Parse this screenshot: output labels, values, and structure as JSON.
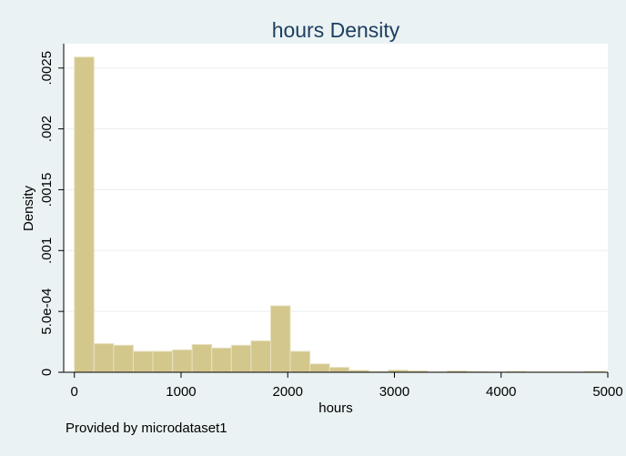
{
  "chart_data": {
    "type": "bar",
    "title": "hours Density",
    "xlabel": "hours",
    "ylabel": "Density",
    "note": "Provided by microdataset1",
    "xlim": [
      -100,
      5000
    ],
    "ylim": [
      0,
      0.0027
    ],
    "xticks": [
      {
        "value": 0,
        "label": "0"
      },
      {
        "value": 1000,
        "label": "1000"
      },
      {
        "value": 2000,
        "label": "2000"
      },
      {
        "value": 3000,
        "label": "3000"
      },
      {
        "value": 4000,
        "label": "4000"
      },
      {
        "value": 5000,
        "label": "5000"
      }
    ],
    "yticks": [
      {
        "value": 0,
        "label": "0"
      },
      {
        "value": 0.0005,
        "label": "5.0e-04"
      },
      {
        "value": 0.001,
        "label": ".001"
      },
      {
        "value": 0.0015,
        "label": ".0015"
      },
      {
        "value": 0.002,
        "label": ".002"
      },
      {
        "value": 0.0025,
        "label": ".0025"
      }
    ],
    "grid": true,
    "bin_width": 184,
    "bins": [
      {
        "x0": 0,
        "x1": 184,
        "value": 0.00259
      },
      {
        "x0": 184,
        "x1": 368,
        "value": 0.000235
      },
      {
        "x0": 368,
        "x1": 552,
        "value": 0.000222
      },
      {
        "x0": 552,
        "x1": 736,
        "value": 0.000172
      },
      {
        "x0": 736,
        "x1": 920,
        "value": 0.000172
      },
      {
        "x0": 920,
        "x1": 1104,
        "value": 0.000184
      },
      {
        "x0": 1104,
        "x1": 1288,
        "value": 0.000228
      },
      {
        "x0": 1288,
        "x1": 1472,
        "value": 0.000199
      },
      {
        "x0": 1472,
        "x1": 1656,
        "value": 0.000222
      },
      {
        "x0": 1656,
        "x1": 1840,
        "value": 0.000258
      },
      {
        "x0": 1840,
        "x1": 2024,
        "value": 0.000546
      },
      {
        "x0": 2024,
        "x1": 2208,
        "value": 0.000172
      },
      {
        "x0": 2208,
        "x1": 2392,
        "value": 6.9e-05
      },
      {
        "x0": 2392,
        "x1": 2576,
        "value": 4e-05
      },
      {
        "x0": 2576,
        "x1": 2760,
        "value": 1.6e-05
      },
      {
        "x0": 2760,
        "x1": 2944,
        "value": 6e-06
      },
      {
        "x0": 2944,
        "x1": 3128,
        "value": 1.8e-05
      },
      {
        "x0": 3128,
        "x1": 3312,
        "value": 1.2e-05
      },
      {
        "x0": 3312,
        "x1": 3496,
        "value": 2e-06
      },
      {
        "x0": 3496,
        "x1": 3680,
        "value": 1.1e-05
      },
      {
        "x0": 3680,
        "x1": 3864,
        "value": 6e-06
      },
      {
        "x0": 3864,
        "x1": 4048,
        "value": 2e-06
      },
      {
        "x0": 4048,
        "x1": 4232,
        "value": 8e-06
      },
      {
        "x0": 4232,
        "x1": 4416,
        "value": 2e-06
      },
      {
        "x0": 4416,
        "x1": 4600,
        "value": 2e-06
      },
      {
        "x0": 4600,
        "x1": 4784,
        "value": 2e-06
      },
      {
        "x0": 4784,
        "x1": 4968,
        "value": 8e-06
      }
    ],
    "colors": {
      "background": "#eaf2f3",
      "plot_area": "#ffffff",
      "bar_fill": "#d3c78c",
      "bar_stroke": "#e8e2c2",
      "grid": "#e9eef0",
      "title": "#1c3f5f"
    }
  }
}
